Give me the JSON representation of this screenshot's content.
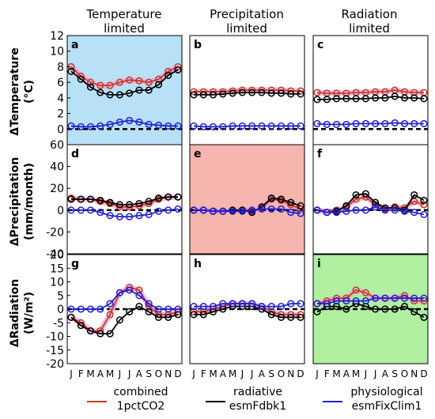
{
  "columns": [
    {
      "line1": "Temperature",
      "line2": "limited"
    },
    {
      "line1": "Precipitation",
      "line2": "limited"
    },
    {
      "line1": "Radiation",
      "line2": "limited"
    }
  ],
  "rows": [
    {
      "line1": "ΔTemperature",
      "line2": "(°C)",
      "ticks": [
        0,
        2,
        4,
        6,
        8,
        10,
        12
      ],
      "ylim": [
        -2,
        12
      ]
    },
    {
      "line1": "ΔPrecipitation",
      "line2": "(mm/month)",
      "ticks": [
        -40,
        -20,
        0,
        20,
        40,
        60
      ],
      "ylim": [
        -40,
        60
      ]
    },
    {
      "line1": "ΔRadiation",
      "line2": "(W/m²)",
      "ticks": [
        -20,
        -15,
        -10,
        -5,
        0,
        5,
        10,
        15,
        20
      ],
      "ylim": [
        -20,
        20
      ]
    }
  ],
  "months": [
    "J",
    "F",
    "M",
    "A",
    "M",
    "J",
    "J",
    "A",
    "S",
    "O",
    "N",
    "D"
  ],
  "legend": [
    {
      "line1": "combined",
      "line2": "1pctCO2",
      "color": "#c0392b"
    },
    {
      "line1": "radiative",
      "line2": "esmFdbk1",
      "color": "#000000"
    },
    {
      "line1": "physiological",
      "line2": "esmFixClim1",
      "color": "#1f1fd6"
    }
  ],
  "colors": {
    "combined": "#c83a1e",
    "radiative": "#000000",
    "physiological": "#1f1fd6",
    "combined_band": "#f0a0e0",
    "zero_line": "#000000",
    "bg_temperature": "#b8e0f7",
    "bg_precipitation": "#f7b5b0",
    "bg_radiation": "#b0f0a0"
  },
  "chart_data": [
    {
      "panel": "a",
      "type": "line",
      "x": [
        "J",
        "F",
        "M",
        "A",
        "M",
        "J",
        "J",
        "A",
        "S",
        "O",
        "N",
        "D"
      ],
      "ylim": [
        -2,
        12
      ],
      "background": "bg_temperature",
      "series": [
        {
          "name": "combined 1pctCO2",
          "values": [
            8.0,
            6.8,
            6.0,
            5.6,
            5.6,
            6.0,
            6.3,
            6.2,
            6.0,
            6.4,
            7.4,
            8.0
          ]
        },
        {
          "name": "radiative esmFdbk1",
          "values": [
            7.4,
            6.4,
            5.4,
            4.7,
            4.4,
            4.4,
            4.6,
            5.0,
            5.0,
            5.7,
            6.9,
            7.6
          ]
        },
        {
          "name": "physiological esmFixClim1",
          "values": [
            0.4,
            0.3,
            0.3,
            0.4,
            0.6,
            0.9,
            1.1,
            0.9,
            0.6,
            0.5,
            0.4,
            0.4
          ]
        }
      ]
    },
    {
      "panel": "b",
      "type": "line",
      "x": [
        "J",
        "F",
        "M",
        "A",
        "M",
        "J",
        "J",
        "A",
        "S",
        "O",
        "N",
        "D"
      ],
      "ylim": [
        -2,
        12
      ],
      "background": "",
      "series": [
        {
          "name": "combined 1pctCO2",
          "values": [
            4.8,
            4.8,
            4.8,
            4.8,
            4.9,
            5.0,
            5.0,
            5.0,
            5.0,
            5.0,
            4.9,
            4.9
          ]
        },
        {
          "name": "radiative esmFdbk1",
          "values": [
            4.4,
            4.4,
            4.4,
            4.5,
            4.6,
            4.7,
            4.7,
            4.7,
            4.6,
            4.6,
            4.5,
            4.5
          ]
        },
        {
          "name": "physiological esmFixClim1",
          "values": [
            0.4,
            0.3,
            0.3,
            0.3,
            0.4,
            0.4,
            0.4,
            0.4,
            0.4,
            0.4,
            0.4,
            0.4
          ]
        }
      ]
    },
    {
      "panel": "c",
      "type": "line",
      "x": [
        "J",
        "F",
        "M",
        "A",
        "M",
        "J",
        "J",
        "A",
        "S",
        "O",
        "N",
        "D"
      ],
      "ylim": [
        -2,
        12
      ],
      "background": "",
      "series": [
        {
          "name": "combined 1pctCO2",
          "values": [
            4.7,
            4.6,
            4.6,
            4.6,
            4.7,
            4.7,
            4.8,
            4.8,
            5.0,
            4.8,
            4.7,
            4.7
          ]
        },
        {
          "name": "radiative esmFdbk1",
          "values": [
            3.8,
            3.8,
            3.9,
            3.9,
            3.9,
            3.9,
            4.0,
            4.0,
            4.2,
            4.0,
            4.0,
            3.9
          ]
        },
        {
          "name": "physiological esmFixClim1",
          "values": [
            0.7,
            0.6,
            0.6,
            0.6,
            0.7,
            0.7,
            0.7,
            0.7,
            0.8,
            0.7,
            0.7,
            0.7
          ]
        }
      ]
    },
    {
      "panel": "d",
      "type": "line",
      "x": [
        "J",
        "F",
        "M",
        "A",
        "M",
        "J",
        "J",
        "A",
        "S",
        "O",
        "N",
        "D"
      ],
      "ylim": [
        -40,
        60
      ],
      "background": "",
      "series": [
        {
          "name": "combined 1pctCO2",
          "values": [
            11,
            10,
            10,
            8,
            6,
            3,
            3,
            4,
            6,
            10,
            12,
            12
          ]
        },
        {
          "name": "radiative esmFdbk1",
          "values": [
            10,
            10,
            10,
            9,
            7,
            5,
            5,
            6,
            8,
            11,
            12,
            12
          ]
        },
        {
          "name": "physiological esmFixClim1",
          "values": [
            0,
            0,
            0,
            -2,
            -5,
            -6,
            -6,
            -5,
            -4,
            -1,
            0,
            1
          ]
        }
      ]
    },
    {
      "panel": "e",
      "type": "line",
      "x": [
        "J",
        "F",
        "M",
        "A",
        "M",
        "J",
        "J",
        "A",
        "S",
        "O",
        "N",
        "D"
      ],
      "ylim": [
        -40,
        60
      ],
      "background": "bg_precipitation",
      "series": [
        {
          "name": "combined 1pctCO2",
          "values": [
            0,
            0,
            -1,
            -1,
            0,
            0,
            -1,
            2,
            10,
            9,
            5,
            1
          ]
        },
        {
          "name": "radiative esmFdbk1",
          "values": [
            0,
            0,
            -1,
            -1,
            0,
            0,
            -2,
            3,
            11,
            10,
            7,
            4
          ]
        },
        {
          "name": "physiological esmFixClim1",
          "values": [
            0,
            0,
            -1,
            -1,
            -1,
            -1,
            0,
            1,
            1,
            1,
            -2,
            -3
          ]
        }
      ]
    },
    {
      "panel": "f",
      "type": "line",
      "x": [
        "J",
        "F",
        "M",
        "A",
        "M",
        "J",
        "J",
        "A",
        "S",
        "O",
        "N",
        "D"
      ],
      "ylim": [
        -40,
        60
      ],
      "background": "",
      "series": [
        {
          "name": "combined 1pctCO2",
          "values": [
            0,
            -2,
            0,
            3,
            10,
            12,
            5,
            1,
            3,
            2,
            8,
            5
          ]
        },
        {
          "name": "radiative esmFdbk1",
          "values": [
            0,
            -2,
            -1,
            4,
            14,
            15,
            7,
            2,
            2,
            0,
            14,
            9
          ]
        },
        {
          "name": "physiological esmFixClim1",
          "values": [
            0,
            -2,
            -2,
            -1,
            0,
            0,
            3,
            0,
            0,
            -1,
            -2,
            -4
          ]
        }
      ]
    },
    {
      "panel": "g",
      "type": "line",
      "x": [
        "J",
        "F",
        "M",
        "A",
        "M",
        "J",
        "J",
        "A",
        "S",
        "O",
        "N",
        "D"
      ],
      "ylim": [
        -20,
        20
      ],
      "background": "",
      "series": [
        {
          "name": "combined 1pctCO2",
          "values": [
            -3,
            -5,
            -8,
            -8,
            -2,
            6,
            8,
            7,
            1,
            -2,
            -2,
            -1
          ]
        },
        {
          "name": "radiative esmFdbk1",
          "values": [
            -3,
            -6,
            -8,
            -9,
            -9,
            -4,
            -1,
            1,
            -1,
            -3,
            -3,
            -2
          ]
        },
        {
          "name": "physiological esmFixClim1",
          "values": [
            0,
            0,
            0,
            0,
            2,
            6,
            7,
            5,
            2,
            0,
            0,
            0
          ]
        }
      ]
    },
    {
      "panel": "h",
      "type": "line",
      "x": [
        "J",
        "F",
        "M",
        "A",
        "M",
        "J",
        "J",
        "A",
        "S",
        "O",
        "N",
        "D"
      ],
      "ylim": [
        -20,
        20
      ],
      "background": "",
      "series": [
        {
          "name": "combined 1pctCO2",
          "values": [
            -1,
            -1,
            0,
            1,
            2,
            2,
            2,
            1,
            -1,
            -2,
            -2,
            -2
          ]
        },
        {
          "name": "radiative esmFdbk1",
          "values": [
            -2,
            -2,
            -1,
            0,
            1,
            1,
            1,
            0,
            -2,
            -3,
            -3,
            -3
          ]
        },
        {
          "name": "physiological esmFixClim1",
          "values": [
            1,
            1,
            1,
            2,
            2,
            2,
            2,
            1,
            1,
            1,
            2,
            2
          ]
        }
      ]
    },
    {
      "panel": "i",
      "type": "line",
      "x": [
        "J",
        "F",
        "M",
        "A",
        "M",
        "J",
        "J",
        "A",
        "S",
        "O",
        "N",
        "D"
      ],
      "ylim": [
        -20,
        20
      ],
      "background": "bg_radiation",
      "series": [
        {
          "name": "combined 1pctCO2",
          "values": [
            2,
            3,
            4,
            4,
            7,
            6,
            4,
            4,
            4,
            5,
            3,
            3
          ]
        },
        {
          "name": "radiative esmFdbk1",
          "values": [
            -1,
            1,
            1,
            0,
            2,
            1,
            0,
            0,
            0,
            1,
            -1,
            -3
          ]
        },
        {
          "name": "physiological esmFixClim1",
          "values": [
            2,
            2,
            3,
            3,
            3,
            3,
            4,
            4,
            4,
            4,
            4,
            4
          ]
        }
      ]
    }
  ]
}
